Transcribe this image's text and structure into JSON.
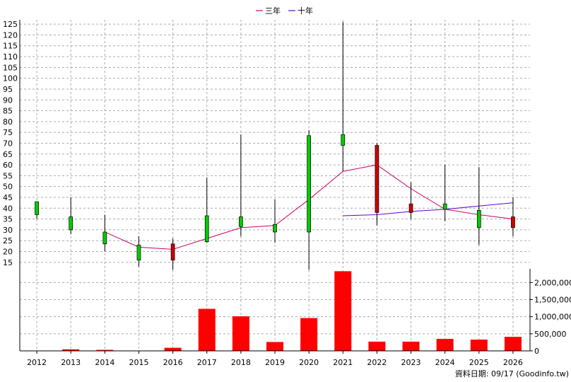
{
  "chart_data": [
    {
      "type": "candlestick",
      "legend": {
        "position": "top-center",
        "items": [
          {
            "name": "三年",
            "color": "#cc0066"
          },
          {
            "name": "十年",
            "color": "#6600cc"
          }
        ]
      },
      "x": [
        "2012",
        "2013",
        "2014",
        "2015",
        "2016",
        "2017",
        "2018",
        "2019",
        "2020",
        "2021",
        "2022",
        "2023",
        "2024",
        "2025",
        "2026"
      ],
      "ylim": [
        12,
        127
      ],
      "yticks": [
        15,
        20,
        25,
        30,
        35,
        40,
        45,
        50,
        55,
        60,
        65,
        70,
        75,
        80,
        85,
        90,
        95,
        100,
        105,
        110,
        115,
        120,
        125
      ],
      "candles": [
        {
          "x": "2012",
          "open": 37,
          "close": 43,
          "high": 43,
          "low": 35
        },
        {
          "x": "2013",
          "open": 30,
          "close": 36,
          "high": 45,
          "low": 28
        },
        {
          "x": "2014",
          "open": 23.5,
          "close": 29,
          "high": 37,
          "low": 20
        },
        {
          "x": "2015",
          "open": 16,
          "close": 23,
          "high": 27,
          "low": 13
        },
        {
          "x": "2016",
          "open": 23.5,
          "close": 16,
          "high": 26,
          "low": 11.5
        },
        {
          "x": "2017",
          "open": 24.5,
          "close": 36.5,
          "high": 54,
          "low": 24
        },
        {
          "x": "2018",
          "open": 31.5,
          "close": 36,
          "high": 74,
          "low": 27
        },
        {
          "x": "2019",
          "open": 29,
          "close": 32.5,
          "high": 44,
          "low": 24
        },
        {
          "x": "2020",
          "open": 29,
          "close": 73.5,
          "high": 76,
          "low": 11.5
        },
        {
          "x": "2021",
          "open": 69,
          "close": 74,
          "high": 126,
          "low": 57
        },
        {
          "x": "2022",
          "open": 69,
          "close": 38,
          "high": 70,
          "low": 32
        },
        {
          "x": "2023",
          "open": 42,
          "close": 38,
          "high": 52,
          "low": 35
        },
        {
          "x": "2024",
          "open": 39.5,
          "close": 42,
          "high": 60,
          "low": 34
        },
        {
          "x": "2025",
          "open": 31,
          "close": 39,
          "high": 59,
          "low": 23
        },
        {
          "x": "2026",
          "open": 36,
          "close": 31,
          "high": 45,
          "low": 27
        }
      ],
      "series": [
        {
          "name": "三年",
          "color": "#cc0066",
          "points": [
            [
              "2014",
              29
            ],
            [
              "2015",
              22
            ],
            [
              "2016",
              21
            ],
            [
              "2017",
              26
            ],
            [
              "2018",
              31
            ],
            [
              "2019",
              32
            ],
            [
              "2020",
              44
            ],
            [
              "2021",
              57
            ],
            [
              "2022",
              60
            ],
            [
              "2023",
              49
            ],
            [
              "2024",
              39.5
            ],
            [
              "2025",
              37
            ],
            [
              "2026",
              35
            ]
          ]
        },
        {
          "name": "十年",
          "color": "#6600cc",
          "points": [
            [
              "2021",
              36.5
            ],
            [
              "2022",
              37
            ],
            [
              "2023",
              38.5
            ],
            [
              "2024",
              39.5
            ],
            [
              "2025",
              41
            ],
            [
              "2026",
              42.5
            ]
          ]
        }
      ],
      "up_color": "#00cc00",
      "down_color": "#cc0000",
      "grid": true
    },
    {
      "type": "bar",
      "categories": [
        "2012",
        "2013",
        "2014",
        "2015",
        "2016",
        "2017",
        "2018",
        "2019",
        "2020",
        "2021",
        "2022",
        "2023",
        "2024",
        "2025",
        "2026"
      ],
      "values": [
        5000,
        45000,
        30000,
        5000,
        90000,
        1230000,
        1010000,
        260000,
        960000,
        2330000,
        270000,
        270000,
        350000,
        330000,
        410000
      ],
      "ylim": [
        0,
        2400000
      ],
      "ytick_labels": [
        "0",
        "500,000",
        "1,000,000",
        "1,500,000",
        "2,000,000"
      ],
      "ytick_values": [
        0,
        500000,
        1000000,
        1500000,
        2000000
      ],
      "color": "#ff0000",
      "grid": true
    }
  ],
  "footer": {
    "source_label": "資料日期: 09/17  (Goodinfo.tw)"
  }
}
